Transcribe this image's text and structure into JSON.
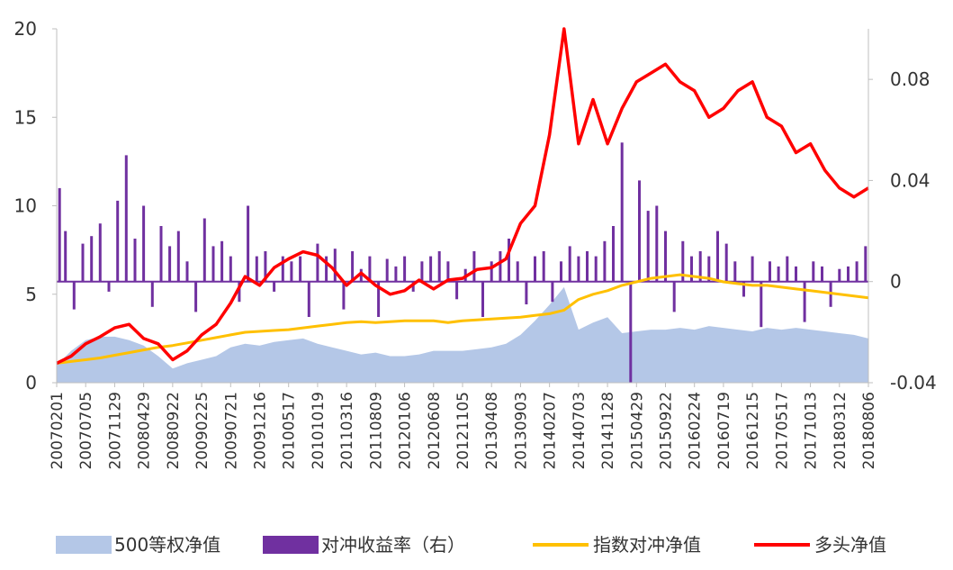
{
  "chart_data": {
    "type": "line",
    "title": "",
    "xlabel": "",
    "ylabel": "",
    "ylim": [
      0,
      20
    ],
    "y2lim": [
      -0.04,
      0.1
    ],
    "y_ticks": [
      "0",
      "5",
      "10",
      "15",
      "20"
    ],
    "y2_ticks": [
      "-0.04",
      "0",
      "0.04",
      "0.08"
    ],
    "y2_tick_values": [
      -0.04,
      0,
      0.04,
      0.08
    ],
    "x_tick_labels": [
      "20070201",
      "20070705",
      "20071129",
      "20080429",
      "20080922",
      "20090225",
      "20090721",
      "20091216",
      "20100517",
      "20101019",
      "20110316",
      "20110809",
      "20120106",
      "20120608",
      "20121105",
      "20130408",
      "20130903",
      "20140207",
      "20140703",
      "20141128",
      "20150429",
      "20150922",
      "20160224",
      "20160719",
      "20161215",
      "20170517",
      "20171013",
      "20180312",
      "20180806"
    ],
    "legend": [
      "500等权净值",
      "对冲收益率（右）",
      "指数对冲净值",
      "多头净值"
    ],
    "legend_position": "bottom",
    "grid": false,
    "colors": {
      "area": "#b4c7e7",
      "bars": "#7030a0",
      "hedge": "#ffc000",
      "long": "#ff0000",
      "axis": "#bfbfbf"
    },
    "series": [
      {
        "name": "500等权净值",
        "kind": "area",
        "axis": "left",
        "x": [
          0,
          0.5,
          1,
          1.5,
          2,
          2.5,
          3,
          3.5,
          4,
          4.5,
          5,
          5.5,
          6,
          6.5,
          7,
          7.5,
          8,
          8.5,
          9,
          9.5,
          10,
          10.5,
          11,
          11.5,
          12,
          12.5,
          13,
          13.5,
          14,
          14.5,
          15,
          15.5,
          16,
          16.5,
          17,
          17.5,
          18,
          18.5,
          19,
          19.5,
          20,
          20.5,
          21,
          21.5,
          22,
          22.5,
          23,
          23.5,
          24,
          24.5,
          25,
          25.5,
          26,
          26.5,
          27,
          27.5,
          28
        ],
        "values": [
          1.0,
          1.8,
          2.4,
          2.6,
          2.6,
          2.4,
          2.1,
          1.5,
          0.8,
          1.1,
          1.3,
          1.5,
          2.0,
          2.2,
          2.1,
          2.3,
          2.4,
          2.5,
          2.2,
          2.0,
          1.8,
          1.6,
          1.7,
          1.5,
          1.5,
          1.6,
          1.8,
          1.8,
          1.8,
          1.9,
          2.0,
          2.2,
          2.7,
          3.5,
          4.4,
          5.4,
          3.0,
          3.4,
          3.7,
          2.8,
          2.9,
          3.0,
          3.0,
          3.1,
          3.0,
          3.2,
          3.1,
          3.0,
          2.9,
          3.1,
          3.0,
          3.1,
          3.0,
          2.9,
          2.8,
          2.7,
          2.5
        ]
      },
      {
        "name": "指数对冲净值",
        "kind": "line",
        "axis": "left",
        "x": [
          0,
          0.5,
          1,
          1.5,
          2,
          2.5,
          3,
          3.5,
          4,
          4.5,
          5,
          5.5,
          6,
          6.5,
          7,
          7.5,
          8,
          8.5,
          9,
          9.5,
          10,
          10.5,
          11,
          11.5,
          12,
          12.5,
          13,
          13.5,
          14,
          14.5,
          15,
          15.5,
          16,
          16.5,
          17,
          17.5,
          18,
          18.5,
          19,
          19.5,
          20,
          20.5,
          21,
          21.5,
          22,
          22.5,
          23,
          23.5,
          24,
          24.5,
          25,
          25.5,
          26,
          26.5,
          27,
          27.5,
          28
        ],
        "values": [
          1.1,
          1.2,
          1.3,
          1.4,
          1.55,
          1.7,
          1.85,
          2.0,
          2.1,
          2.25,
          2.4,
          2.55,
          2.7,
          2.85,
          2.9,
          2.95,
          3.0,
          3.1,
          3.2,
          3.3,
          3.4,
          3.45,
          3.4,
          3.45,
          3.5,
          3.5,
          3.5,
          3.4,
          3.5,
          3.55,
          3.6,
          3.65,
          3.7,
          3.8,
          3.9,
          4.1,
          4.7,
          5.0,
          5.2,
          5.5,
          5.7,
          5.9,
          6.0,
          6.1,
          6.0,
          5.9,
          5.7,
          5.6,
          5.5,
          5.5,
          5.4,
          5.3,
          5.2,
          5.1,
          5.0,
          4.9,
          4.8
        ]
      },
      {
        "name": "多头净值",
        "kind": "line",
        "axis": "left",
        "x": [
          0,
          0.5,
          1,
          1.5,
          2,
          2.5,
          3,
          3.5,
          4,
          4.5,
          5,
          5.5,
          6,
          6.5,
          7,
          7.5,
          8,
          8.5,
          9,
          9.5,
          10,
          10.5,
          11,
          11.5,
          12,
          12.5,
          13,
          13.5,
          14,
          14.5,
          15,
          15.5,
          16,
          16.5,
          17,
          17.5,
          18,
          18.5,
          19,
          19.5,
          20,
          20.5,
          21,
          21.5,
          22,
          22.5,
          23,
          23.5,
          24,
          24.5,
          25,
          25.5,
          26,
          26.5,
          27,
          27.5,
          28
        ],
        "values": [
          1.1,
          1.5,
          2.2,
          2.6,
          3.1,
          3.3,
          2.5,
          2.2,
          1.3,
          1.8,
          2.7,
          3.3,
          4.5,
          6.0,
          5.5,
          6.5,
          7.0,
          7.4,
          7.2,
          6.5,
          5.5,
          6.2,
          5.5,
          5.0,
          5.2,
          5.8,
          5.3,
          5.8,
          5.9,
          6.4,
          6.5,
          7.0,
          9.0,
          10.0,
          14.0,
          20.0,
          13.5,
          16.0,
          13.5,
          15.5,
          17.0,
          17.5,
          18.0,
          17.0,
          16.5,
          15.0,
          15.5,
          16.5,
          17.0,
          15.0,
          14.5,
          13.0,
          13.5,
          12.0,
          11.0,
          10.5,
          11.0
        ]
      },
      {
        "name": "对冲收益率（右）",
        "kind": "bar",
        "axis": "right",
        "x": [
          0.1,
          0.3,
          0.6,
          0.9,
          1.2,
          1.5,
          1.8,
          2.1,
          2.4,
          2.7,
          3.0,
          3.3,
          3.6,
          3.9,
          4.2,
          4.5,
          4.8,
          5.1,
          5.4,
          5.7,
          6.0,
          6.3,
          6.6,
          6.9,
          7.2,
          7.5,
          7.8,
          8.1,
          8.4,
          8.7,
          9.0,
          9.3,
          9.6,
          9.9,
          10.2,
          10.5,
          10.8,
          11.1,
          11.4,
          11.7,
          12.0,
          12.3,
          12.6,
          12.9,
          13.2,
          13.5,
          13.8,
          14.1,
          14.4,
          14.7,
          15.0,
          15.3,
          15.6,
          15.9,
          16.2,
          16.5,
          16.8,
          17.1,
          17.4,
          17.7,
          18.0,
          18.3,
          18.6,
          18.9,
          19.2,
          19.5,
          19.8,
          20.1,
          20.4,
          20.7,
          21.0,
          21.3,
          21.6,
          21.9,
          22.2,
          22.5,
          22.8,
          23.1,
          23.4,
          23.7,
          24.0,
          24.3,
          24.6,
          24.9,
          25.2,
          25.5,
          25.8,
          26.1,
          26.4,
          26.7,
          27.0,
          27.3,
          27.6,
          27.9
        ],
        "values": [
          0.037,
          0.02,
          -0.011,
          0.015,
          0.018,
          0.023,
          -0.004,
          0.032,
          0.05,
          0.017,
          0.03,
          -0.01,
          0.022,
          0.014,
          0.02,
          0.008,
          -0.012,
          0.025,
          0.014,
          0.016,
          0.01,
          -0.008,
          0.03,
          0.01,
          0.012,
          -0.004,
          0.01,
          0.008,
          0.01,
          -0.014,
          0.015,
          0.01,
          0.013,
          -0.011,
          0.012,
          0.005,
          0.01,
          -0.014,
          0.009,
          0.006,
          0.01,
          -0.004,
          0.008,
          0.01,
          0.012,
          0.008,
          -0.007,
          0.005,
          0.012,
          -0.014,
          0.008,
          0.012,
          0.017,
          0.008,
          -0.009,
          0.01,
          0.012,
          -0.008,
          0.008,
          0.014,
          0.01,
          0.012,
          0.01,
          0.016,
          0.022,
          0.055,
          -0.04,
          0.04,
          0.028,
          0.03,
          0.02,
          -0.012,
          0.016,
          0.01,
          0.012,
          0.01,
          0.02,
          0.015,
          0.008,
          -0.006,
          0.01,
          -0.018,
          0.008,
          0.006,
          0.01,
          0.006,
          -0.016,
          0.008,
          0.006,
          -0.01,
          0.005,
          0.006,
          0.008,
          0.014
        ]
      }
    ]
  }
}
